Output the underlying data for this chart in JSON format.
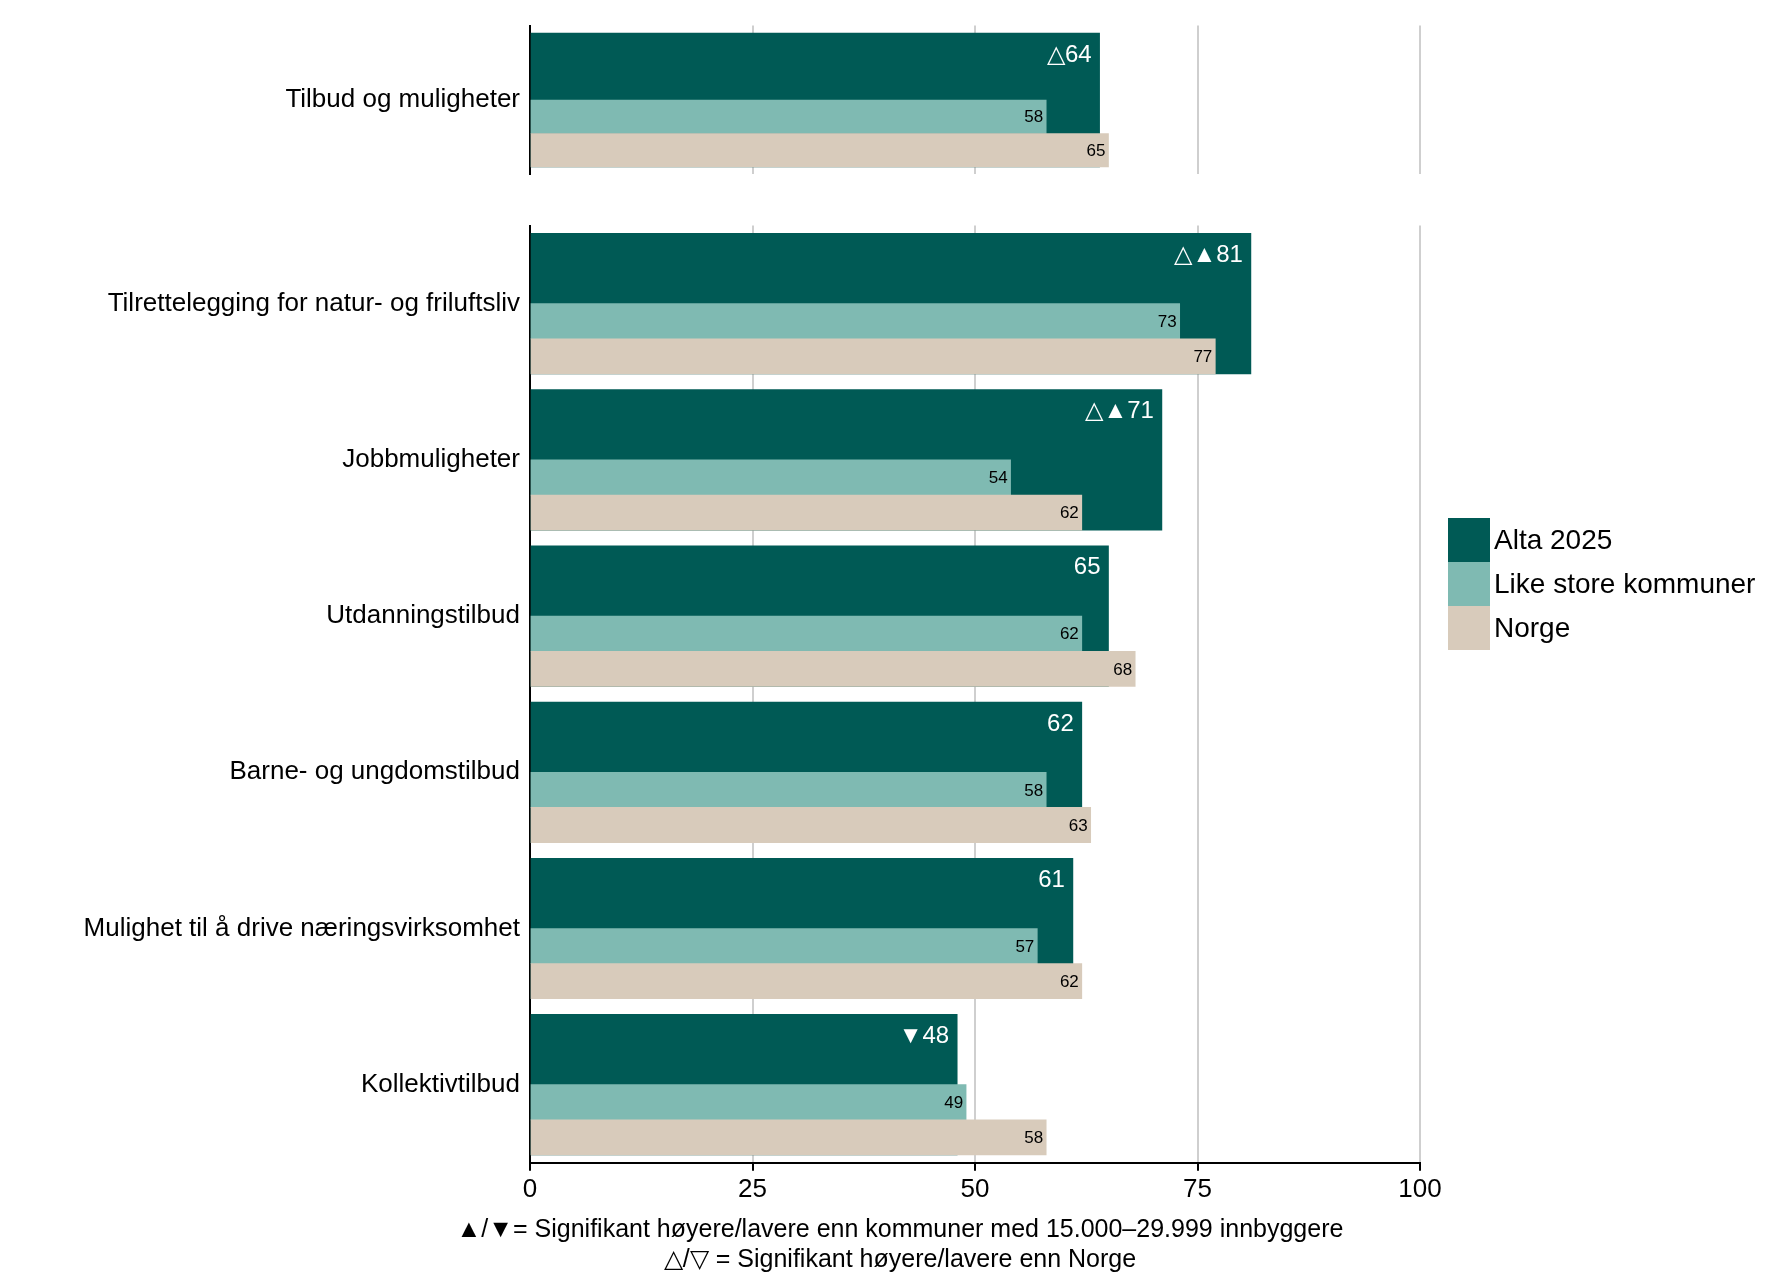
{
  "chart_data": [
    {
      "type": "bar",
      "orientation": "horizontal",
      "categories": [
        "Tilbud og muligheter"
      ],
      "series": [
        {
          "color": "#005a55",
          "values": [
            64
          ],
          "value_labels": [
            "△64"
          ]
        },
        {
          "color": "#7fbab2",
          "values": [
            58
          ],
          "value_labels": [
            "58"
          ]
        },
        {
          "color": "#d8cbbb",
          "values": [
            65
          ],
          "value_labels": [
            "65"
          ]
        }
      ],
      "xlim": [
        0,
        100
      ],
      "xticks": [
        0,
        25,
        50,
        75,
        100
      ],
      "grid": "x",
      "tick_labels": "y"
    },
    {
      "type": "bar",
      "orientation": "horizontal",
      "categories": [
        "Tilrettelegging for natur- og friluftsliv",
        "Jobbmuligheter",
        "Utdanningstilbud",
        "Barne- og ungdomstilbud",
        "Mulighet til å drive næringsvirksomhet",
        "Kollektivtilbud"
      ],
      "series": [
        {
          "name": "Alta 2025",
          "color": "#005a55",
          "values": [
            81,
            71,
            65,
            62,
            61,
            48
          ],
          "value_labels": [
            "△▲81",
            "△▲71",
            "65",
            "62",
            "61",
            "▼48"
          ]
        },
        {
          "name": "Like store kommuner",
          "color": "#7fbab2",
          "values": [
            73,
            54,
            62,
            58,
            57,
            49
          ],
          "value_labels": [
            "73",
            "54",
            "62",
            "58",
            "57",
            "49"
          ]
        },
        {
          "name": "Norge",
          "color": "#d8cbbb",
          "values": [
            77,
            62,
            68,
            63,
            62,
            58
          ],
          "value_labels": [
            "77",
            "62",
            "68",
            "63",
            "62",
            "58"
          ]
        }
      ],
      "xlim": [
        0,
        100
      ],
      "xticks": [
        0,
        25,
        50,
        75,
        100
      ],
      "grid": "x",
      "legend": "right",
      "annotations": [
        "▲/▼= Signifikant høyere/lavere enn kommuner med 15.000–29.999 innbyggere",
        "△/▽ = Signifikant høyere/lavere enn Norge"
      ]
    }
  ]
}
